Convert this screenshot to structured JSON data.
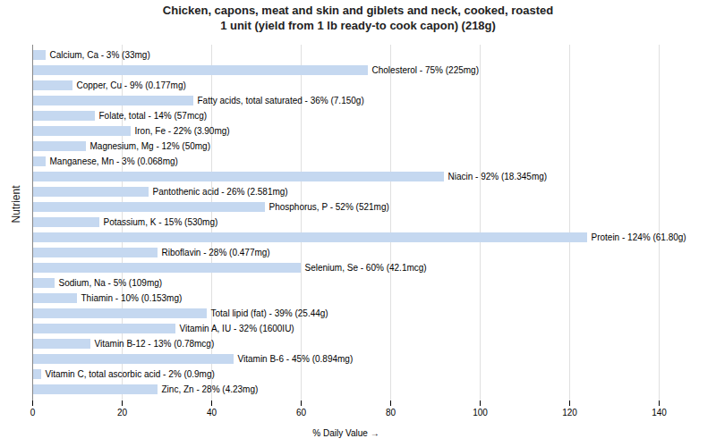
{
  "chart_data": {
    "type": "bar",
    "orientation": "horizontal",
    "title": "Chicken, capons, meat and skin and giblets and neck, cooked, roasted\n1 unit (yield from 1 lb ready-to cook capon) (218g)",
    "xlabel": "% Daily Value",
    "ylabel": "Nutrient",
    "categories": [
      "Calcium, Ca - 3% (33mg)",
      "Cholesterol - 75% (225mg)",
      "Copper, Cu - 9% (0.177mg)",
      "Fatty acids, total saturated - 36% (7.150g)",
      "Folate, total - 14% (57mcg)",
      "Iron, Fe - 22% (3.90mg)",
      "Magnesium, Mg - 12% (50mg)",
      "Manganese, Mn - 3% (0.068mg)",
      "Niacin - 92% (18.345mg)",
      "Pantothenic acid - 26% (2.581mg)",
      "Phosphorus, P - 52% (521mg)",
      "Potassium, K - 15% (530mg)",
      "Protein - 124% (61.80g)",
      "Riboflavin - 28% (0.477mg)",
      "Selenium, Se - 60% (42.1mcg)",
      "Sodium, Na - 5% (109mg)",
      "Thiamin - 10% (0.153mg)",
      "Total lipid (fat) - 39% (25.44g)",
      "Vitamin A, IU - 32% (1600IU)",
      "Vitamin B-12 - 13% (0.78mcg)",
      "Vitamin B-6 - 45% (0.894mg)",
      "Vitamin C, total ascorbic acid - 2% (0.9mg)",
      "Zinc, Zn - 28% (4.23mg)"
    ],
    "values": [
      3,
      75,
      9,
      36,
      14,
      22,
      12,
      3,
      92,
      26,
      52,
      15,
      124,
      28,
      60,
      5,
      10,
      39,
      32,
      13,
      45,
      2,
      28
    ],
    "color": "#c5d8f0",
    "xlim": [
      0,
      140
    ],
    "xticks": [
      0,
      20,
      40,
      60,
      80,
      100,
      120,
      140
    ],
    "grid": true,
    "tick_labels": "x"
  }
}
